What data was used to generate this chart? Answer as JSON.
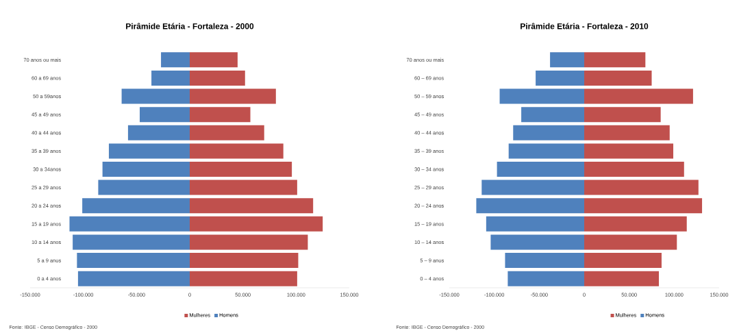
{
  "chart_data": [
    {
      "type": "bar",
      "orientation": "horizontal",
      "stacked": true,
      "title": "Pirâmide Etária - Fortaleza - 2000",
      "categories": [
        "70 anos ou mais",
        "60 a 69 anos",
        "50 a 59anos",
        "45 a 49 anos",
        "40 a 44 anos",
        "35 a 39 anos",
        "30 a 34anos",
        "25 a 29 anos",
        "20 a 24 anos",
        "15 a 19 anos",
        "10 a 14 anos",
        "5 a 9 anos",
        "0 a 4 anos"
      ],
      "series": [
        {
          "name": "Mulheres",
          "color": "#c0504d",
          "values": [
            45000,
            52000,
            81000,
            57000,
            70000,
            88000,
            96000,
            101000,
            116000,
            125000,
            111000,
            102000,
            101000
          ]
        },
        {
          "name": "Homens",
          "color": "#4f81bd",
          "values": [
            -27000,
            -36000,
            -64000,
            -47000,
            -58000,
            -76000,
            -82000,
            -86000,
            -101000,
            -113000,
            -110000,
            -106000,
            -105000
          ]
        }
      ],
      "xlim": [
        -150000,
        150000
      ],
      "xticks": [
        {
          "value": -150000,
          "label": "-150.000"
        },
        {
          "value": -100000,
          "label": "-100.000"
        },
        {
          "value": -50000,
          "label": "-50.000"
        },
        0,
        {
          "value": 50000,
          "label": "50.000"
        },
        {
          "value": 100000,
          "label": "100.000"
        },
        {
          "value": 150000,
          "label": "150.000"
        }
      ],
      "legend": "bottom",
      "annotations": [
        "Fonte: IBGE - Censo Demográfico - 2000"
      ]
    },
    {
      "type": "bar",
      "orientation": "horizontal",
      "stacked": true,
      "title": "Pirâmide Etária - Fortaleza - 2010",
      "categories": [
        "70 anos ou mais",
        "60 – 69 anos",
        "50 – 59 anos",
        "45 – 49 anos",
        "40 – 44 anos",
        "35 – 39 anos",
        "30 – 34 anos",
        "25 – 29 anos",
        "20 – 24 anos",
        "15 – 19 anos",
        "10 – 14 anos",
        "5 – 9 anos",
        "0 – 4 anos"
      ],
      "series": [
        {
          "name": "Mulheres",
          "color": "#c0504d",
          "values": [
            68000,
            75000,
            121000,
            85000,
            95000,
            99000,
            111000,
            127000,
            131000,
            114000,
            103000,
            86000,
            83000
          ]
        },
        {
          "name": "Homens",
          "color": "#4f81bd",
          "values": [
            -38000,
            -54000,
            -94000,
            -70000,
            -79000,
            -84000,
            -97000,
            -114000,
            -120000,
            -109000,
            -104000,
            -88000,
            -85000
          ]
        }
      ],
      "xlim": [
        -150000,
        150000
      ],
      "xticks": [
        {
          "value": -150000,
          "label": "-150.000"
        },
        {
          "value": -100000,
          "label": "-100.000"
        },
        {
          "value": -50000,
          "label": "-50.000"
        },
        0,
        {
          "value": 50000,
          "label": "50.000"
        },
        {
          "value": 100000,
          "label": "100.000"
        },
        {
          "value": 150000,
          "label": "150.000"
        }
      ],
      "legend": "bottom",
      "annotations": [
        "Fonte: IBGE - Censo Demográfico - 2000"
      ]
    }
  ]
}
